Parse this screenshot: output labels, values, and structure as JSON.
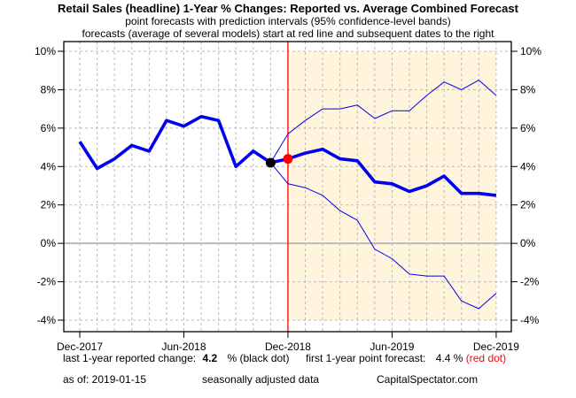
{
  "chart_data": {
    "type": "line",
    "title": "Retail Sales (headline) 1-Year % Changes: Reported vs. Average Combined Forecast",
    "subtitle_1": "point forecasts with prediction intervals (95% confidence-level bands)",
    "subtitle_2": "forecasts (average of several models) start at red line and subsequent dates to the right",
    "xlabel": "",
    "ylabel": "",
    "ylim": [
      -4,
      10
    ],
    "yticks": [
      -4,
      -2,
      0,
      2,
      4,
      6,
      8,
      10
    ],
    "ytick_labels": [
      "-4%",
      "-2%",
      "0%",
      "2%",
      "4%",
      "6%",
      "8%",
      "10%"
    ],
    "x_months": [
      "2017-12",
      "2018-01",
      "2018-02",
      "2018-03",
      "2018-04",
      "2018-05",
      "2018-06",
      "2018-07",
      "2018-08",
      "2018-09",
      "2018-10",
      "2018-11",
      "2018-12",
      "2019-01",
      "2019-02",
      "2019-03",
      "2019-04",
      "2019-05",
      "2019-06",
      "2019-07",
      "2019-08",
      "2019-09",
      "2019-10",
      "2019-11",
      "2019-12"
    ],
    "xtick_labels": [
      "Dec-2017",
      "Jun-2018",
      "Dec-2018",
      "Jun-2019",
      "Dec-2019"
    ],
    "xtick_index": [
      0,
      6,
      12,
      18,
      24
    ],
    "grid": true,
    "forecast_start_index": 12,
    "series": [
      {
        "name": "Reported",
        "start_index": 0,
        "values": [
          5.3,
          3.9,
          4.4,
          5.1,
          4.8,
          6.4,
          6.1,
          6.6,
          6.4,
          4.0,
          4.8,
          4.2
        ],
        "color": "#0000ee",
        "style": "thick"
      },
      {
        "name": "Average combined forecast",
        "start_index": 11,
        "values": [
          4.2,
          4.4,
          4.7,
          4.9,
          4.4,
          4.3,
          3.2,
          3.1,
          2.7,
          3.0,
          3.5,
          2.6,
          2.6,
          2.5
        ],
        "color": "#0000ee",
        "style": "thick"
      },
      {
        "name": "Upper 95% band",
        "start_index": 11,
        "values": [
          4.2,
          5.7,
          6.4,
          7.0,
          7.0,
          7.2,
          6.5,
          6.9,
          6.9,
          7.7,
          8.4,
          8.0,
          8.5,
          7.7
        ],
        "color": "#0000ee",
        "style": "thin"
      },
      {
        "name": "Lower 95% band",
        "start_index": 11,
        "values": [
          4.2,
          3.1,
          2.9,
          2.5,
          1.7,
          1.2,
          -0.3,
          -0.8,
          -1.6,
          -1.7,
          -1.7,
          -3.0,
          -3.4,
          -2.6
        ],
        "color": "#0000ee",
        "style": "thin"
      }
    ],
    "markers": [
      {
        "name": "last reported",
        "index": 11,
        "value": 4.2,
        "color": "#000000"
      },
      {
        "name": "first forecast",
        "index": 12,
        "value": 4.4,
        "color": "#ff0000"
      }
    ],
    "colors": {
      "line": "#0000ee",
      "forecast_shade": "#fff5dc",
      "forecast_line": "#ff0000",
      "grid": "#bbbbbb",
      "zero_line": "#bbbbbb"
    }
  },
  "footer": {
    "reported_label": "last 1-year reported change:",
    "reported_value": "4.2",
    "reported_suffix": "% (black dot)",
    "forecast_label": "first 1-year point forecast:",
    "forecast_value": "4.4 %",
    "forecast_suffix": "(red dot)",
    "asof": "as of:  2019-01-15",
    "note": "seasonally adjusted data",
    "source": "CapitalSpectator.com"
  }
}
